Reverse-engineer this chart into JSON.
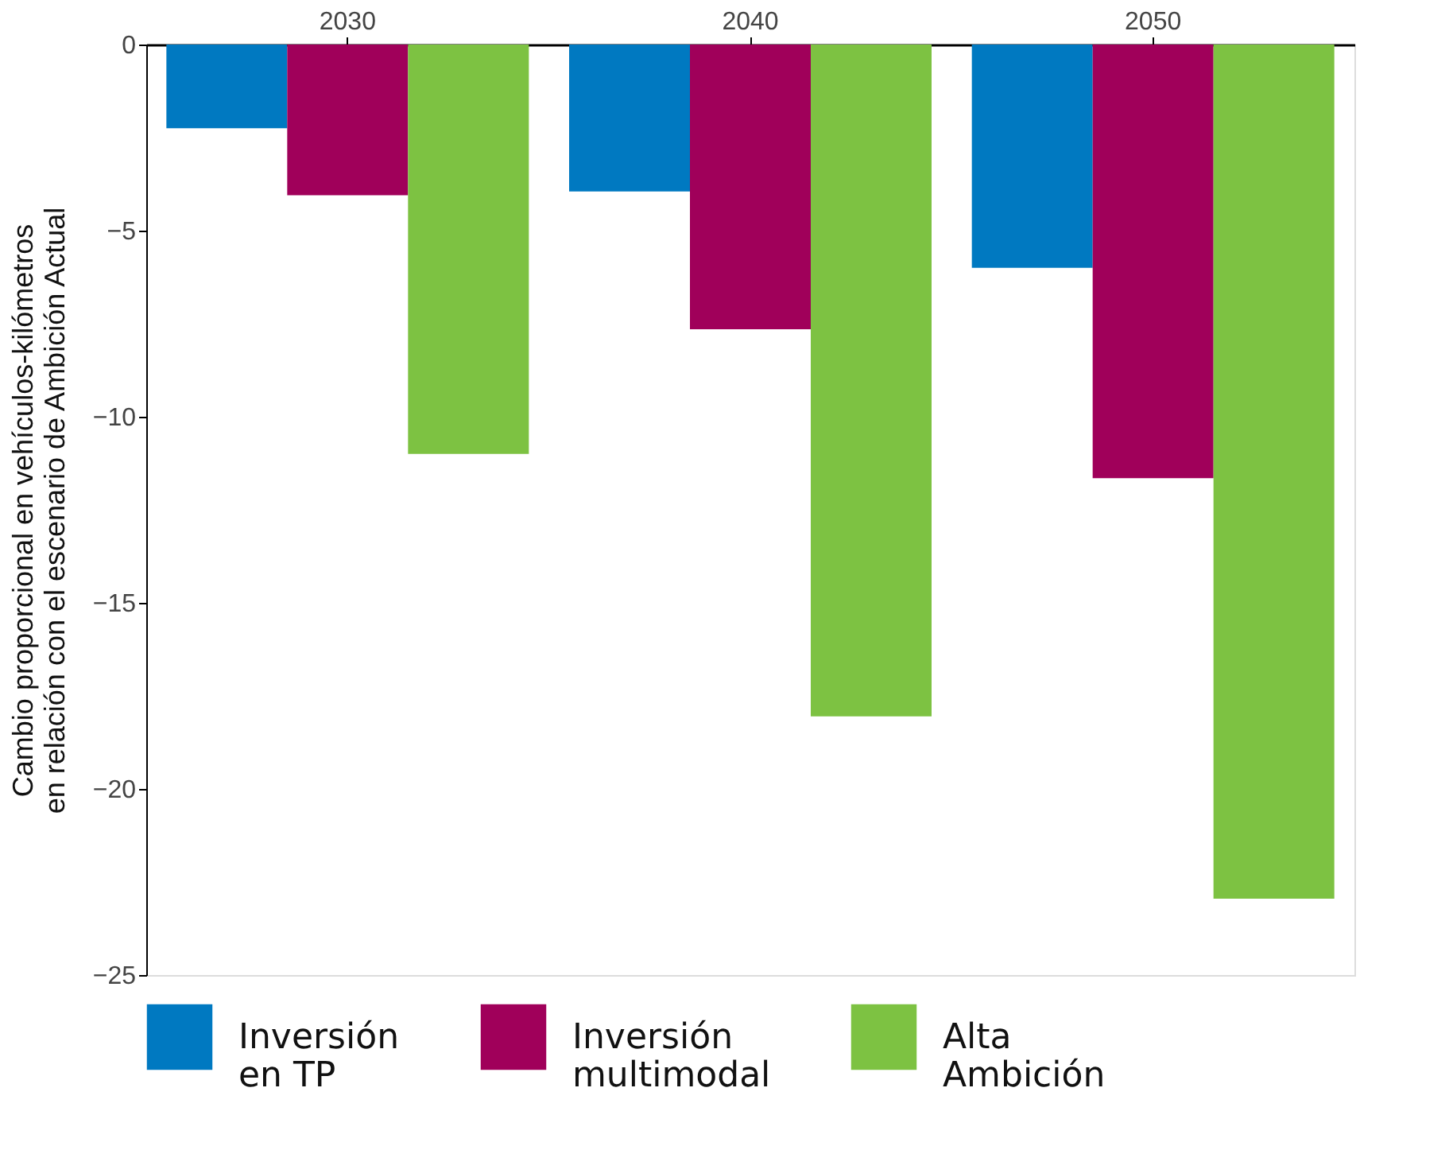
{
  "chart_data": {
    "type": "bar",
    "categories": [
      "2030",
      "2040",
      "2050"
    ],
    "ylabel": "Cambio proporcional en vehículos-kilómetros en relación con el escenario de Ambición Actual",
    "series": [
      {
        "name": "Inversión en TP",
        "color": "#0079c1",
        "values": [
          -2.25,
          -3.95,
          -6.0
        ]
      },
      {
        "name": "Inversión multimodal",
        "color": "#a0005a",
        "values": [
          -4.05,
          -7.65,
          -11.65
        ]
      },
      {
        "name": "Alta Ambición",
        "color": "#7dc242",
        "values": [
          -11.0,
          -18.05,
          -22.95
        ]
      }
    ],
    "ylim": [
      -25,
      0
    ],
    "yticks": [
      -25,
      -20,
      -15,
      -10,
      -5,
      0
    ],
    "grid": false,
    "legend": "bottom"
  }
}
